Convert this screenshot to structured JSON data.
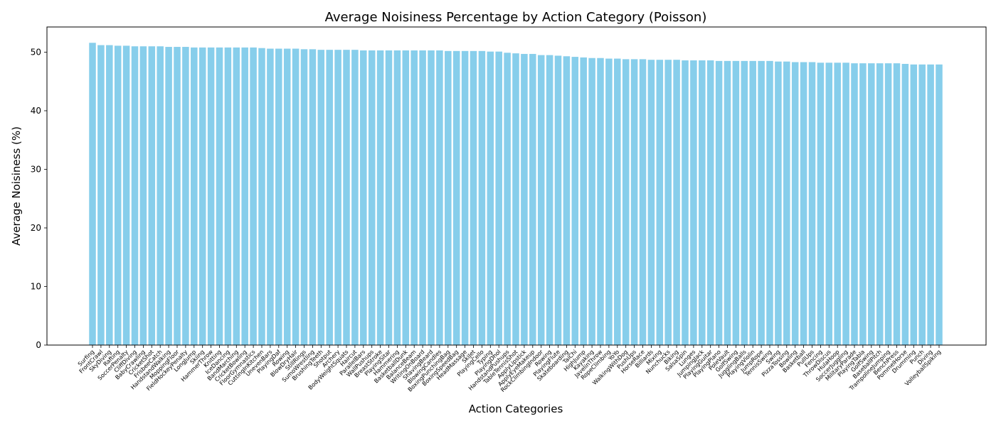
{
  "chart_data": {
    "type": "bar",
    "title": "Average Noisiness Percentage by Action Category (Poisson)",
    "xlabel": "Action Categories",
    "ylabel": "Average Noisiness (%)",
    "ylim": [
      0,
      54.3
    ],
    "yticks": [
      0,
      10,
      20,
      30,
      40,
      50
    ],
    "grid": false,
    "bar_color": "#87ceeb",
    "categories": [
      "Surfing",
      "FrontCrawl",
      "SkyDiving",
      "Rafting",
      "SoccerPenalty",
      "CliffDiving",
      "BabyCrawling",
      "CricketShot",
      "FrisbeeCatch",
      "HandstandWalking",
      "MoppingFloor",
      "FieldHockeyPenalty",
      "LongJump",
      "Skiing",
      "HammerThrow",
      "Knitting",
      "IceDancing",
      "BandMarching",
      "CricketBowling",
      "FloorGymnastics",
      "CuttingInKitchen",
      "UnevenBars",
      "PlayingDaf",
      "Rowing",
      "BlowDryHair",
      "StillRings",
      "SumoWrestling",
      "BrushingTeeth",
      "Shotput",
      "Archery",
      "BodyWeightSquats",
      "Haircut",
      "ParallelBars",
      "WallPushups",
      "BreastStroke",
      "PlayingSitar",
      "Hammering",
      "BasketballDunk",
      "BalanceBeam",
      "WritingOnBoard",
      "ShavingBeard",
      "BlowingCandles",
      "BoxingPunchingBag",
      "BoxingSpeedBag",
      "HeadMassage",
      "SkiJet",
      "PlayingCello",
      "Typing",
      "PlayingDhol",
      "HandstandPushups",
      "TableTennisShot",
      "ApplyLipstick",
      "ApplyEyeMakeup",
      "RockClimbingIndoor",
      "Rowing",
      "PlayingFlute",
      "Skateboarding",
      "TaiChi",
      "HighJump",
      "Kayaking",
      "JavelinThrow",
      "RopeClimbing",
      "YoYo",
      "WalkingWithDog",
      "PushUps",
      "HorseRace",
      "Billiards",
      "Mixing",
      "Nunchucks",
      "Biking",
      "SalsaSpin",
      "Lunges",
      "JumpingJack",
      "PlayingGuitar",
      "PlayingPiano",
      "PoleVault",
      "GolfSwing",
      "JugglingBalls",
      "PlayingViolin",
      "JumpRope",
      "TennisSwing",
      "Swing",
      "PizzaTossing",
      "Bowling",
      "Basketball",
      "PullUps",
      "Fencing",
      "ThrowDiscus",
      "HulaHoop",
      "SoccerJuggling",
      "MilitaryParade",
      "PlayingTabla",
      "GolfSwing",
      "BaseballPitch",
      "TrampolineJumping",
      "BenchPress",
      "PommelHorse",
      "Drumming",
      "Punch",
      "Diving",
      "VolleyballSpiking"
    ],
    "values": [
      51.6,
      51.2,
      51.2,
      51.1,
      51.1,
      51.0,
      51.0,
      51.0,
      51.0,
      50.9,
      50.9,
      50.9,
      50.8,
      50.8,
      50.8,
      50.8,
      50.8,
      50.8,
      50.8,
      50.8,
      50.7,
      50.6,
      50.6,
      50.6,
      50.6,
      50.5,
      50.5,
      50.4,
      50.4,
      50.4,
      50.4,
      50.4,
      50.3,
      50.3,
      50.3,
      50.3,
      50.3,
      50.3,
      50.3,
      50.3,
      50.3,
      50.3,
      50.2,
      50.2,
      50.2,
      50.2,
      50.2,
      50.1,
      50.1,
      49.9,
      49.8,
      49.7,
      49.7,
      49.5,
      49.5,
      49.4,
      49.3,
      49.2,
      49.1,
      49.0,
      49.0,
      48.9,
      48.9,
      48.8,
      48.8,
      48.8,
      48.7,
      48.7,
      48.7,
      48.7,
      48.6,
      48.6,
      48.6,
      48.6,
      48.5,
      48.5,
      48.5,
      48.5,
      48.5,
      48.5,
      48.5,
      48.4,
      48.4,
      48.3,
      48.3,
      48.3,
      48.2,
      48.2,
      48.2,
      48.2,
      48.1,
      48.1,
      48.1,
      48.1,
      48.1,
      48.1,
      48.0,
      47.9,
      47.9,
      47.9,
      47.9
    ]
  }
}
